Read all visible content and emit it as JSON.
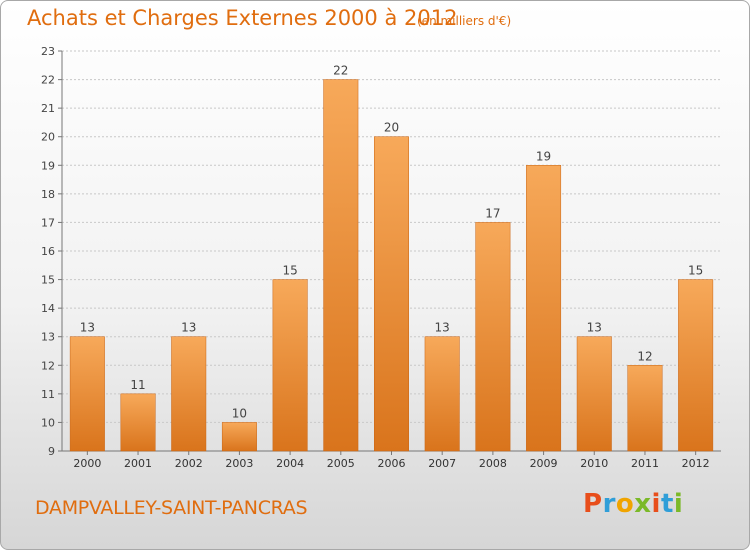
{
  "header": {
    "title": "Achats et Charges Externes 2000 à 2012",
    "unit": "(en milliers d'€)"
  },
  "footer": {
    "commune": "DAMPVALLEY-SAINT-PANCRAS",
    "logo_text": "Proxiti"
  },
  "colors": {
    "accent": "#e06d0f",
    "bar_light": "#f7a95a",
    "bar_dark": "#d9741c",
    "logo": [
      "#e84e1b",
      "#2f9ed8",
      "#f0a400",
      "#7bb928",
      "#e84e1b",
      "#2f9ed8",
      "#7bb928"
    ]
  },
  "chart_data": {
    "type": "bar",
    "title": "Achats et Charges Externes 2000 à 2012",
    "subtitle": "(en milliers d'€)",
    "categories": [
      "2000",
      "2001",
      "2002",
      "2003",
      "2004",
      "2005",
      "2006",
      "2007",
      "2008",
      "2009",
      "2010",
      "2011",
      "2012"
    ],
    "values": [
      13,
      11,
      13,
      10,
      15,
      22,
      20,
      13,
      17,
      19,
      13,
      12,
      15
    ],
    "yticks": [
      9,
      10,
      11,
      12,
      13,
      14,
      15,
      16,
      17,
      18,
      19,
      20,
      21,
      22,
      23
    ],
    "ylim": [
      9,
      23
    ],
    "grid": true,
    "data_labels": true
  }
}
